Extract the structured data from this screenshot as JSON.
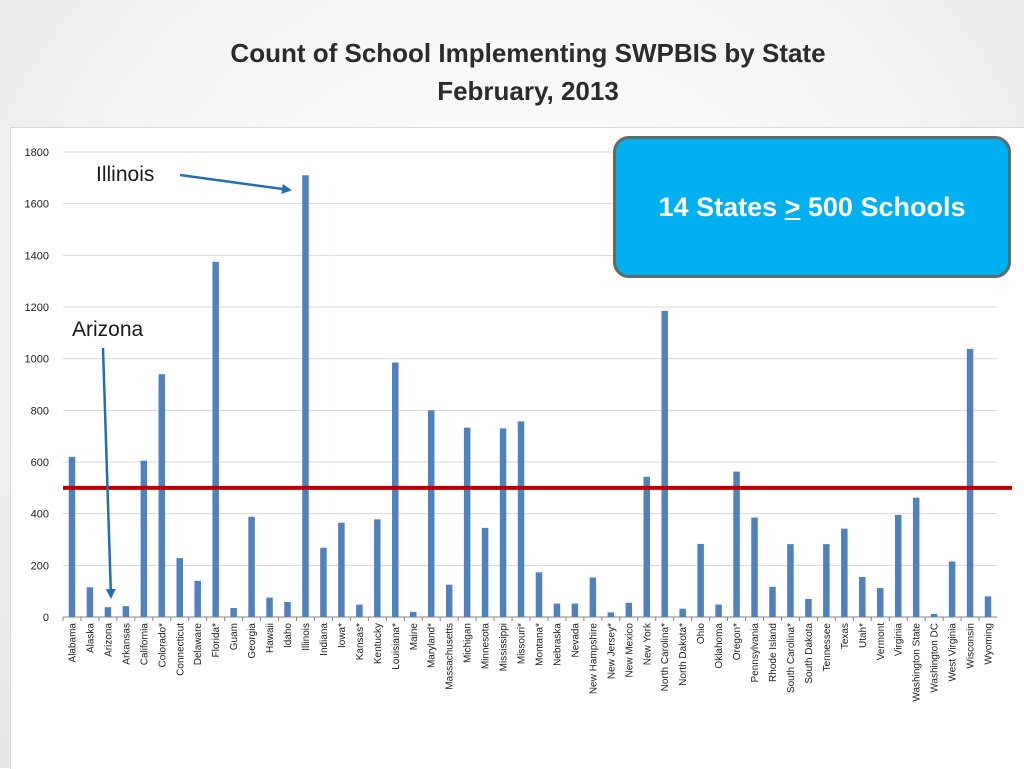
{
  "title_line1": "Count of School Implementing SWPBIS by State",
  "title_line2": "February, 2013",
  "callout": {
    "prefix": "14 States ",
    "symbol": ">",
    "suffix": " 500 Schools"
  },
  "annotations": {
    "illinois": "Illinois",
    "arizona": "Arizona"
  },
  "colors": {
    "bar": "#4f81bd",
    "threshold_line": "#c00000",
    "callout_fill": "#00b0f0",
    "arrow": "#1f6fb5"
  },
  "chart_data": {
    "type": "bar",
    "title": "Count of School Implementing SWPBIS by State February, 2013",
    "xlabel": "",
    "ylabel": "",
    "ylim": [
      0,
      1800
    ],
    "yticks": [
      0,
      200,
      400,
      600,
      800,
      1000,
      1200,
      1400,
      1600,
      1800
    ],
    "grid": true,
    "reference_line": 500,
    "categories": [
      "Alabama",
      "Alaska",
      "Arizona",
      "Arkansas",
      "California",
      "Colorado*",
      "Connecticut",
      "Delaware",
      "Florida*",
      "Guam",
      "Georgia",
      "Hawaii",
      "Idaho",
      "Illinois",
      "Indiana",
      "Iowa*",
      "Kansas*",
      "Kentucky",
      "Louisiana*",
      "Maine",
      "Maryland*",
      "Massachusetts",
      "Michigan",
      "Minnesota",
      "Mississippi",
      "Missouri*",
      "Montana*",
      "Nebraska",
      "Nevada",
      "New Hampshire",
      "New Jersey*",
      "New Mexico",
      "New York",
      "North Carolina*",
      "North Dakota*",
      "Ohio",
      "Oklahoma",
      "Oregon*",
      "Pennsylvania",
      "Rhode Island",
      "South Carolina*",
      "South Dakota",
      "Tennessee",
      "Texas",
      "Utah*",
      "Vermont",
      "Virginia",
      "Washington State",
      "Washington DC",
      "West Virginia",
      "Wisconsin",
      "Wyoming"
    ],
    "values": [
      620,
      115,
      38,
      42,
      605,
      940,
      228,
      140,
      1375,
      35,
      388,
      75,
      58,
      1710,
      268,
      365,
      48,
      378,
      985,
      20,
      800,
      125,
      733,
      345,
      730,
      757,
      173,
      52,
      52,
      153,
      18,
      55,
      543,
      1185,
      32,
      283,
      48,
      563,
      385,
      117,
      282,
      70,
      282,
      342,
      155,
      112,
      395,
      462,
      12,
      215,
      1038,
      80
    ]
  }
}
